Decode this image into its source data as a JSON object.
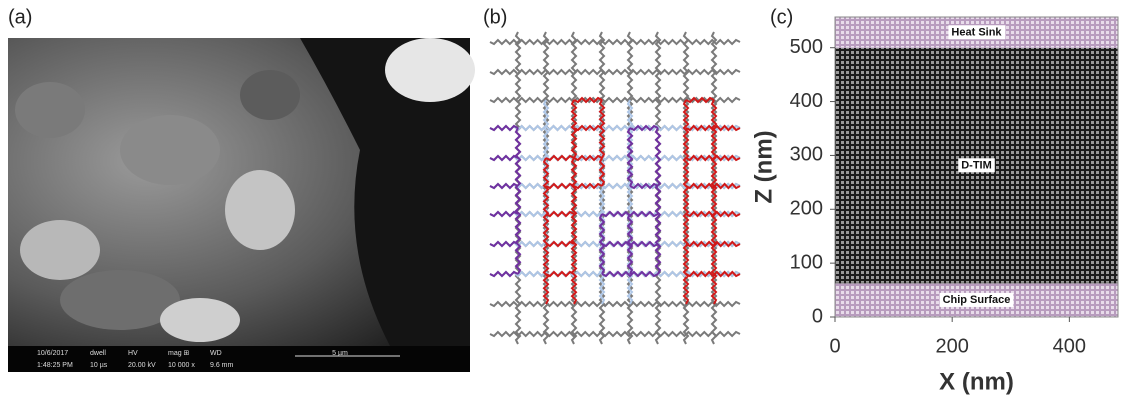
{
  "panel_a": {
    "label": "(a)",
    "info_bar": [
      "10/6/2017",
      "1:48:25 PM",
      "dwell",
      "10 µs",
      "HV",
      "20.00 kV",
      "mag ⊞",
      "10 000 x",
      "WD",
      "9.6 mm"
    ],
    "scale_bar": "5 µm"
  },
  "panel_b": {
    "label": "(b)"
  },
  "chart_data": {
    "type": "region",
    "panel_label": "(c)",
    "xlabel": "X (nm)",
    "ylabel": "Z (nm)",
    "xlim": [
      0,
      483
    ],
    "ylim": [
      0,
      557
    ],
    "xticks": [
      0,
      200,
      400
    ],
    "yticks": [
      0,
      100,
      200,
      300,
      400,
      500
    ],
    "regions": [
      {
        "name": "Chip Surface",
        "range": [
          0,
          63
        ],
        "color": "#c8b2cc"
      },
      {
        "name": "D-TIM",
        "range": [
          63,
          500
        ],
        "color": "#1c1c1c"
      },
      {
        "name": "Heat Sink",
        "range": [
          500,
          557
        ],
        "color": "#c8b2cc"
      }
    ]
  }
}
